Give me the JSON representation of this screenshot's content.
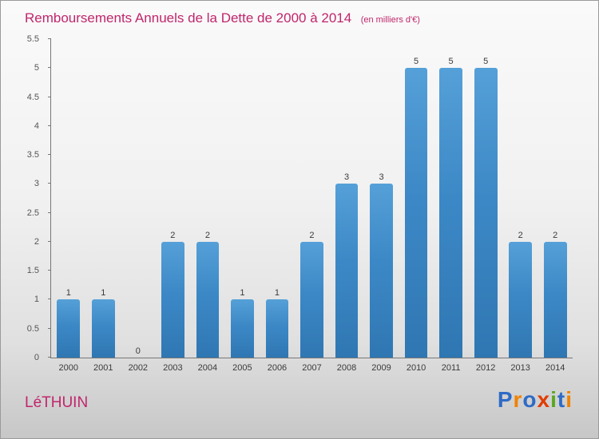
{
  "chart_data": {
    "type": "bar",
    "title": "Remboursements Annuels de la Dette de 2000 à 2014",
    "subtitle": "(en milliers d'€)",
    "categories": [
      "2000",
      "2001",
      "2002",
      "2003",
      "2004",
      "2005",
      "2006",
      "2007",
      "2008",
      "2009",
      "2010",
      "2011",
      "2012",
      "2013",
      "2014"
    ],
    "values": [
      1,
      1,
      0,
      2,
      2,
      1,
      1,
      2,
      3,
      3,
      5,
      5,
      5,
      2,
      2
    ],
    "ylim": [
      0,
      5.5
    ],
    "yticks": [
      0,
      0.5,
      1,
      1.5,
      2,
      2.5,
      3,
      3.5,
      4,
      4.5,
      5,
      5.5
    ],
    "grid": false,
    "legend_position": "none",
    "bar_color": "#3c88c6",
    "title_color": "#c0266c"
  },
  "footer": {
    "commune": "LéTHUIN",
    "logo_letters": [
      {
        "ch": "P",
        "color": "#2f6bc6"
      },
      {
        "ch": "r",
        "color": "#f08200"
      },
      {
        "ch": "o",
        "color": "#2f6bc6"
      },
      {
        "ch": "x",
        "color": "#e23c00"
      },
      {
        "ch": "i",
        "color": "#59a81f"
      },
      {
        "ch": "t",
        "color": "#2f6bc6"
      },
      {
        "ch": "i",
        "color": "#f08200"
      }
    ]
  }
}
